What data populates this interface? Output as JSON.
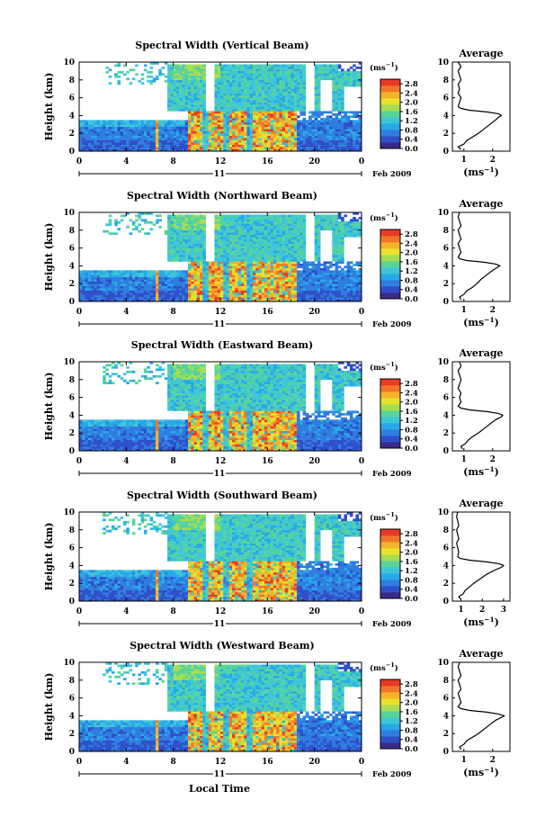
{
  "figure": {
    "x_axis_label": "Local Time",
    "date_label": "Feb 2009",
    "day_label": "11",
    "unit_label": "(ms",
    "unit_exp": "−1",
    "avg_title": "Average",
    "avg_xlabel": "(ms",
    "y_axis_label": "Height (km)"
  },
  "colors": {
    "colormap": [
      "#3a2a8a",
      "#2f4fc9",
      "#2f7de0",
      "#28a8e8",
      "#3ec6d8",
      "#58d49a",
      "#a6dd52",
      "#e8e22c",
      "#f6b22a",
      "#f2762a",
      "#e83a24"
    ],
    "background": "#ffffff"
  },
  "chart_data": [
    {
      "type": "heatmap",
      "title": "Spectral Width (Vertical Beam)",
      "x_ticks": [
        "0",
        "4",
        "8",
        "12",
        "16",
        "20",
        "0"
      ],
      "y_ticks": [
        "0",
        "2",
        "4",
        "6",
        "8",
        "10"
      ],
      "xlim": [
        0,
        24
      ],
      "ylim": [
        0,
        10
      ],
      "colorbar_ticks": [
        "0.0",
        "0.4",
        "0.8",
        "1.2",
        "1.6",
        "2.0",
        "2.4",
        "2.8"
      ],
      "colorbar_range": [
        0,
        3.0
      ],
      "avg_xticks": [
        "1",
        "2"
      ],
      "avg_xlim": [
        0.6,
        2.6
      ],
      "avg_profile": {
        "height": [
          0.2,
          0.5,
          0.8,
          1.2,
          1.6,
          2.0,
          2.5,
          3.0,
          3.5,
          3.8,
          4.0,
          4.2,
          4.4,
          4.6,
          4.8,
          5.0,
          5.5,
          6.0,
          6.5,
          7.0,
          7.5,
          8.0,
          8.5,
          9.0,
          9.5,
          10.0
        ],
        "width": [
          0.9,
          0.8,
          1.0,
          1.1,
          1.3,
          1.5,
          1.7,
          1.9,
          2.1,
          2.2,
          2.3,
          2.2,
          1.8,
          1.2,
          0.9,
          0.8,
          0.85,
          0.9,
          0.8,
          0.85,
          0.8,
          0.9,
          0.85,
          0.8,
          0.9,
          0.8
        ]
      }
    },
    {
      "type": "heatmap",
      "title": "Spectral Width (Northward Beam)",
      "x_ticks": [
        "0",
        "4",
        "8",
        "12",
        "16",
        "20",
        "0"
      ],
      "y_ticks": [
        "0",
        "2",
        "4",
        "6",
        "8",
        "10"
      ],
      "xlim": [
        0,
        24
      ],
      "ylim": [
        0,
        10
      ],
      "colorbar_ticks": [
        "0.0",
        "0.4",
        "0.8",
        "1.2",
        "1.6",
        "2.0",
        "2.4",
        "2.8"
      ],
      "colorbar_range": [
        0,
        3.0
      ],
      "avg_xticks": [
        "1",
        "2"
      ],
      "avg_xlim": [
        0.6,
        2.6
      ],
      "avg_profile": {
        "height": [
          0.2,
          0.5,
          0.8,
          1.2,
          1.6,
          2.0,
          2.5,
          3.0,
          3.5,
          3.8,
          4.0,
          4.2,
          4.4,
          4.6,
          4.8,
          5.0,
          5.5,
          6.0,
          6.5,
          7.0,
          7.5,
          8.0,
          8.5,
          9.0,
          9.5,
          10.0
        ],
        "width": [
          0.9,
          0.85,
          1.0,
          1.1,
          1.3,
          1.45,
          1.6,
          1.8,
          2.0,
          2.15,
          2.25,
          2.1,
          1.7,
          1.1,
          0.85,
          0.8,
          0.9,
          0.85,
          0.8,
          0.9,
          0.85,
          0.8,
          0.9,
          0.85,
          0.8,
          0.85
        ]
      }
    },
    {
      "type": "heatmap",
      "title": "Spectral Width (Eastward Beam)",
      "x_ticks": [
        "0",
        "4",
        "8",
        "12",
        "16",
        "20",
        "0"
      ],
      "y_ticks": [
        "0",
        "2",
        "4",
        "6",
        "8",
        "10"
      ],
      "xlim": [
        0,
        24
      ],
      "ylim": [
        0,
        10
      ],
      "colorbar_ticks": [
        "0.0",
        "0.4",
        "0.8",
        "1.2",
        "1.6",
        "2.0",
        "2.4",
        "2.8"
      ],
      "colorbar_range": [
        0,
        3.0
      ],
      "avg_xticks": [
        "1",
        "2"
      ],
      "avg_xlim": [
        0.6,
        2.6
      ],
      "avg_profile": {
        "height": [
          0.2,
          0.5,
          0.8,
          1.2,
          1.6,
          2.0,
          2.5,
          3.0,
          3.5,
          3.8,
          4.0,
          4.2,
          4.4,
          4.6,
          4.8,
          5.0,
          5.5,
          6.0,
          6.5,
          7.0,
          7.5,
          8.0,
          8.5,
          9.0,
          9.5,
          10.0
        ],
        "width": [
          0.95,
          0.9,
          1.05,
          1.15,
          1.3,
          1.5,
          1.7,
          1.9,
          2.1,
          2.3,
          2.35,
          2.2,
          1.8,
          1.2,
          0.9,
          0.8,
          0.9,
          0.85,
          0.9,
          0.8,
          0.85,
          0.9,
          0.85,
          0.8,
          0.9,
          0.85
        ]
      }
    },
    {
      "type": "heatmap",
      "title": "Spectral Width (Southward Beam)",
      "x_ticks": [
        "0",
        "4",
        "8",
        "12",
        "16",
        "20",
        "0"
      ],
      "y_ticks": [
        "0",
        "2",
        "4",
        "6",
        "8",
        "10"
      ],
      "xlim": [
        0,
        24
      ],
      "ylim": [
        0,
        10
      ],
      "colorbar_ticks": [
        "0.0",
        "0.4",
        "0.8",
        "1.2",
        "1.6",
        "2.0",
        "2.4",
        "2.8"
      ],
      "colorbar_range": [
        0,
        3.0
      ],
      "avg_xticks": [
        "1",
        "2",
        "3"
      ],
      "avg_xlim": [
        0.6,
        3.3
      ],
      "avg_profile": {
        "height": [
          0.2,
          0.5,
          0.8,
          1.2,
          1.6,
          2.0,
          2.5,
          3.0,
          3.5,
          3.8,
          4.0,
          4.2,
          4.4,
          4.6,
          4.8,
          5.0,
          5.5,
          6.0,
          6.5,
          7.0,
          7.5,
          8.0,
          8.5,
          9.0,
          9.5,
          10.0
        ],
        "width": [
          1.0,
          0.9,
          1.1,
          1.2,
          1.4,
          1.6,
          1.9,
          2.2,
          2.6,
          2.9,
          3.0,
          2.8,
          2.2,
          1.4,
          0.95,
          0.85,
          0.9,
          0.85,
          0.8,
          0.9,
          0.85,
          0.8,
          0.9,
          0.85,
          0.8,
          0.85
        ]
      }
    },
    {
      "type": "heatmap",
      "title": "Spectral Width (Westward Beam)",
      "x_ticks": [
        "0",
        "4",
        "8",
        "12",
        "16",
        "20",
        "0"
      ],
      "y_ticks": [
        "0",
        "2",
        "4",
        "6",
        "8",
        "10"
      ],
      "xlim": [
        0,
        24
      ],
      "ylim": [
        0,
        10
      ],
      "colorbar_ticks": [
        "0.0",
        "0.4",
        "0.8",
        "1.2",
        "1.6",
        "2.0",
        "2.4",
        "2.8"
      ],
      "colorbar_range": [
        0,
        3.0
      ],
      "avg_xticks": [
        "1",
        "2"
      ],
      "avg_xlim": [
        0.6,
        2.6
      ],
      "avg_profile": {
        "height": [
          0.2,
          0.5,
          0.8,
          1.2,
          1.6,
          2.0,
          2.5,
          3.0,
          3.5,
          3.8,
          4.0,
          4.2,
          4.4,
          4.6,
          4.8,
          5.0,
          5.5,
          6.0,
          6.5,
          7.0,
          7.5,
          8.0,
          8.5,
          9.0,
          9.5,
          10.0
        ],
        "width": [
          0.9,
          0.85,
          1.0,
          1.1,
          1.3,
          1.5,
          1.7,
          1.9,
          2.1,
          2.3,
          2.4,
          2.2,
          1.8,
          1.2,
          0.9,
          0.8,
          0.9,
          0.85,
          0.8,
          0.9,
          0.85,
          0.8,
          0.9,
          0.85,
          0.8,
          0.85
        ]
      }
    }
  ]
}
